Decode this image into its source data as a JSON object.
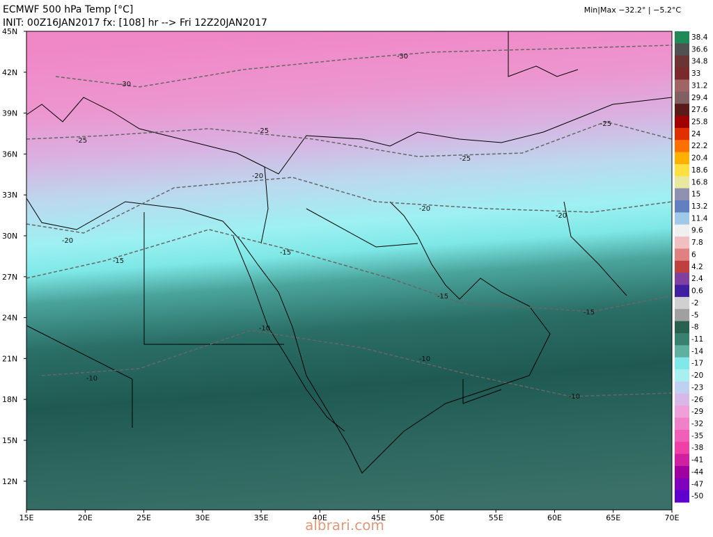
{
  "header": {
    "title": "ECMWF 500 hPa Temp [°C]",
    "subtitle": "INIT: 00Z16JAN2017 fx: [108] hr --> Fri 12Z20JAN2017",
    "minmax": "Min|Max −32.2° | −5.2°C"
  },
  "map": {
    "lat_labels": [
      "45N",
      "42N",
      "39N",
      "36N",
      "33N",
      "30N",
      "27N",
      "24N",
      "21N",
      "18N",
      "15N",
      "12N"
    ],
    "lon_labels": [
      "15E",
      "20E",
      "25E",
      "30E",
      "35E",
      "40E",
      "45E",
      "50E",
      "55E",
      "60E",
      "65E",
      "70E"
    ],
    "contour_labels": [
      "-30",
      "-30",
      "-25",
      "-25",
      "-25",
      "-25",
      "-20",
      "-20",
      "-20",
      "-20",
      "-15",
      "-15",
      "-15",
      "-15",
      "-10",
      "-10",
      "-10",
      "-10"
    ]
  },
  "colorbar": {
    "labels": [
      "38.4",
      "36.6",
      "34.8",
      "33",
      "31.2",
      "29.4",
      "27.6",
      "25.8",
      "24",
      "22.2",
      "20.4",
      "18.6",
      "16.8",
      "15",
      "13.2",
      "11.4",
      "9.6",
      "7.8",
      "6",
      "4.2",
      "2.4",
      "0.6",
      "-2",
      "-5",
      "-8",
      "-11",
      "-14",
      "-17",
      "-20",
      "-23",
      "-26",
      "-29",
      "-32",
      "-35",
      "-38",
      "-41",
      "-44",
      "-47",
      "-50"
    ],
    "colors": [
      "#1f8a55",
      "#505050",
      "#6a3434",
      "#7a2a2a",
      "#a06464",
      "#806060",
      "#5a1a1a",
      "#a00000",
      "#e03000",
      "#ff7000",
      "#ffb000",
      "#ffe040",
      "#e8e8a0",
      "#9090b0",
      "#6080c0",
      "#a0c8e8",
      "#f0f0f0",
      "#f0c0c0",
      "#e08080",
      "#c04040",
      "#8040a0",
      "#4020a0",
      "#d0d0d0",
      "#a0a0a0",
      "#2a6050",
      "#3a8070",
      "#60b0a0",
      "#80e8e8",
      "#a8f0f0",
      "#c0d0f0",
      "#d8b8e8",
      "#f0a0d8",
      "#f080c8",
      "#f060b8",
      "#f040a8",
      "#d020a0",
      "#a000a0",
      "#8000c0",
      "#6000d0"
    ]
  },
  "watermark": "albrari.com"
}
